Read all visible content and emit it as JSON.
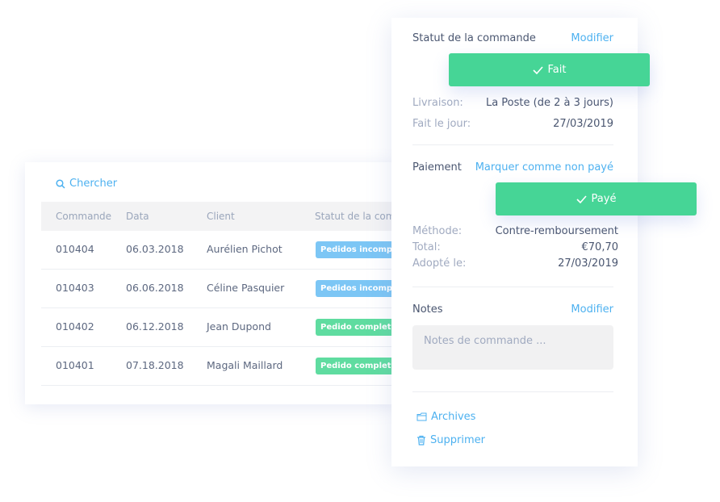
{
  "table": {
    "search_label": "Chercher",
    "headers": [
      "Commande",
      "Data",
      "Client",
      "Statut de la comm"
    ],
    "rows": [
      {
        "order": "010404",
        "date": "06.03.2018",
        "client": "Aurélien Pichot",
        "status": "Pedidos incompletos",
        "status_color": "#7cc6f5"
      },
      {
        "order": "010403",
        "date": "06.06.2018",
        "client": "Céline Pasquier",
        "status": "Pedidos incompletos",
        "status_color": "#7cc6f5"
      },
      {
        "order": "010402",
        "date": "06.12.2018",
        "client": "Jean Dupond",
        "status": "Pedido completado",
        "status_color": "#5fdca0"
      },
      {
        "order": "010401",
        "date": "07.18.2018",
        "client": "Magali Maillard",
        "status": "Pedido completado",
        "status_color": "#5fdca0"
      }
    ]
  },
  "panel": {
    "status_title": "Statut de la commande",
    "status_modify": "Modifier",
    "status_button": "Fait",
    "delivery_label": "Livraison:",
    "delivery_value": "La Poste (de 2 à 3 jours)",
    "done_label": "Fait le jour:",
    "done_value": "27/03/2019",
    "payment_title": "Paiement",
    "payment_link": "Marquer comme non payé",
    "payment_button": "Payé",
    "method_label": "Méthode:",
    "method_value": "Contre-remboursement",
    "total_label": "Total:",
    "total_value": "€70,70",
    "adopted_label": "Adopté le:",
    "adopted_value": "27/03/2019",
    "notes_title": "Notes",
    "notes_modify": "Modifier",
    "notes_placeholder": "Notes de commande ...",
    "archives": "Archives",
    "delete": "Supprimer"
  },
  "colors": {
    "accent": "#4db1f0",
    "success": "#46d596"
  }
}
